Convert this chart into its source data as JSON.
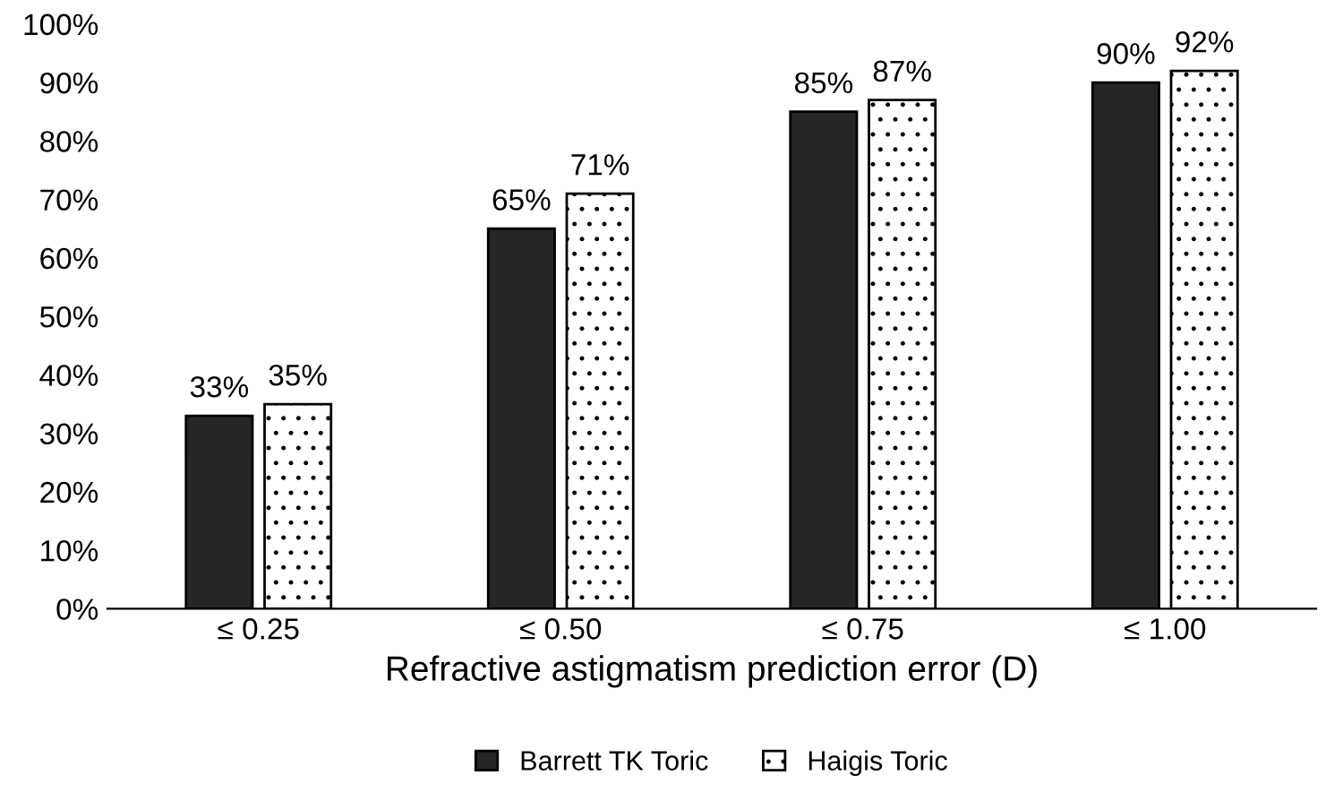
{
  "chart_data": {
    "type": "bar",
    "xlabel": "Refractive astigmatism prediction error (D)",
    "categories": [
      "≤ 0.25",
      "≤ 0.50",
      "≤ 0.75",
      "≤ 1.00"
    ],
    "series": [
      {
        "name": "Barrett TK Toric",
        "color": "#262626",
        "values": [
          33,
          65,
          85,
          90
        ],
        "value_labels": [
          "33%",
          "65%",
          "85%",
          "90%"
        ]
      },
      {
        "name": "Haigis Toric",
        "color": "#ffffff",
        "values": [
          35,
          71,
          87,
          92
        ],
        "value_labels": [
          "35%",
          "71%",
          "87%",
          "92%"
        ]
      }
    ],
    "ylim": [
      0,
      100
    ],
    "yticks": [
      {
        "value": 0,
        "label": "0%"
      },
      {
        "value": 10,
        "label": "10%"
      },
      {
        "value": 20,
        "label": "20%"
      },
      {
        "value": 30,
        "label": "30%"
      },
      {
        "value": 40,
        "label": "40%"
      },
      {
        "value": 50,
        "label": "50%"
      },
      {
        "value": 60,
        "label": "60%"
      },
      {
        "value": 70,
        "label": "70%"
      },
      {
        "value": 80,
        "label": "80%"
      },
      {
        "value": 90,
        "label": "90%"
      },
      {
        "value": 100,
        "label": "100%"
      }
    ],
    "grid": false,
    "legend": "bottom"
  }
}
